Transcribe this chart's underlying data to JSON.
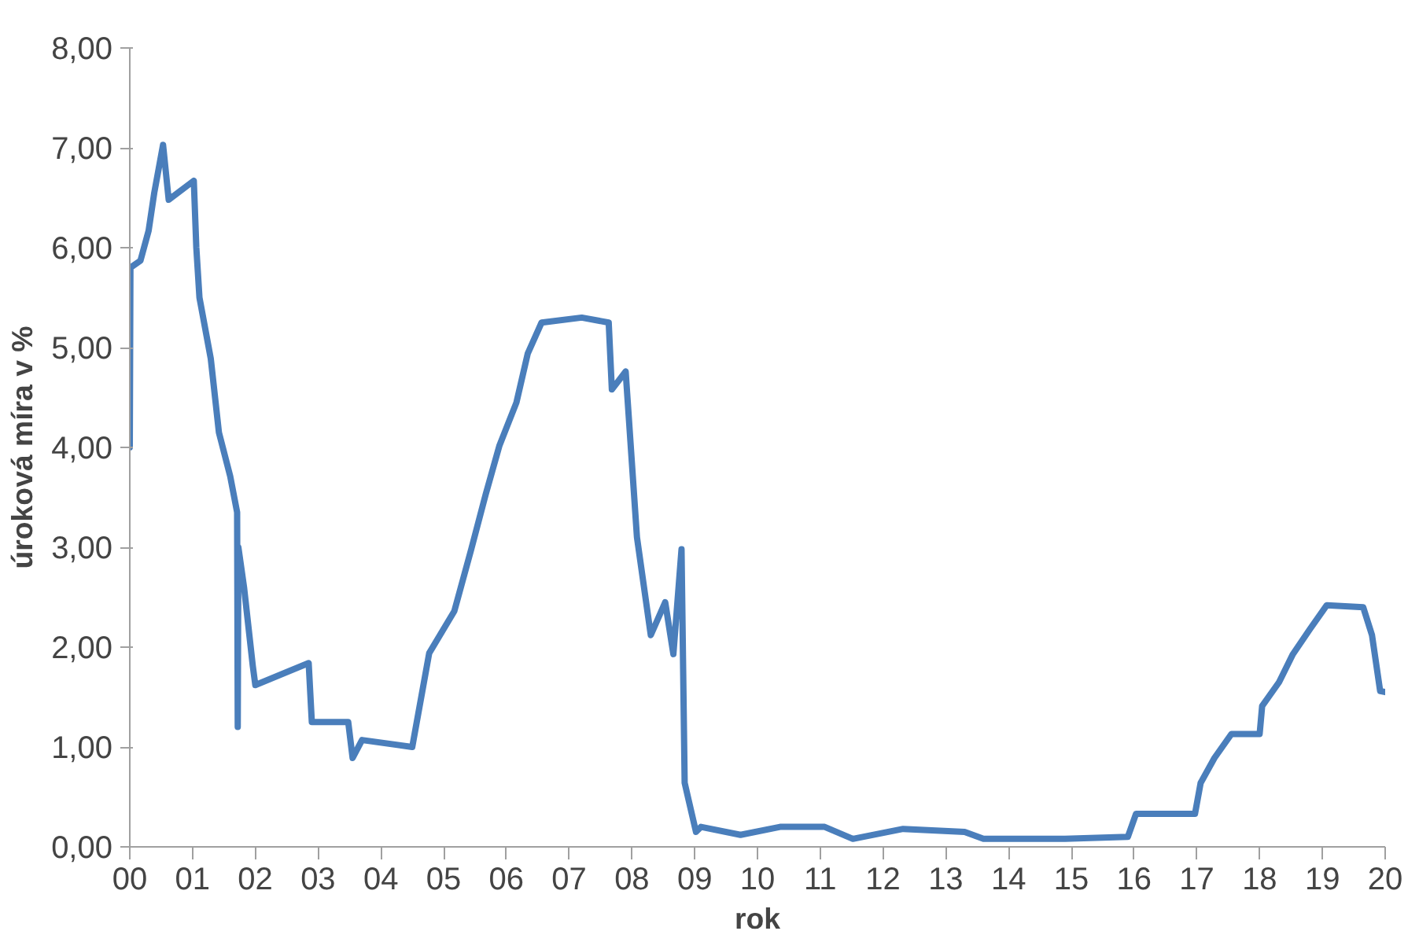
{
  "chart_data": {
    "type": "line",
    "xlabel": "rok",
    "ylabel": "úroková míra v %",
    "xlim": [
      0,
      20
    ],
    "ylim": [
      0,
      8
    ],
    "xticks": [
      {
        "value": 0,
        "label": "00"
      },
      {
        "value": 1,
        "label": "01"
      },
      {
        "value": 2,
        "label": "02"
      },
      {
        "value": 3,
        "label": "03"
      },
      {
        "value": 4,
        "label": "04"
      },
      {
        "value": 5,
        "label": "05"
      },
      {
        "value": 6,
        "label": "06"
      },
      {
        "value": 7,
        "label": "07"
      },
      {
        "value": 8,
        "label": "08"
      },
      {
        "value": 9,
        "label": "09"
      },
      {
        "value": 10,
        "label": "10"
      },
      {
        "value": 11,
        "label": "11"
      },
      {
        "value": 12,
        "label": "12"
      },
      {
        "value": 13,
        "label": "13"
      },
      {
        "value": 14,
        "label": "14"
      },
      {
        "value": 15,
        "label": "15"
      },
      {
        "value": 16,
        "label": "16"
      },
      {
        "value": 17,
        "label": "17"
      },
      {
        "value": 18,
        "label": "18"
      },
      {
        "value": 19,
        "label": "19"
      },
      {
        "value": 20,
        "label": "20"
      }
    ],
    "yticks": [
      {
        "value": 0,
        "label": "0,00"
      },
      {
        "value": 1,
        "label": "1,00"
      },
      {
        "value": 2,
        "label": "2,00"
      },
      {
        "value": 3,
        "label": "3,00"
      },
      {
        "value": 4,
        "label": "4,00"
      },
      {
        "value": 5,
        "label": "5,00"
      },
      {
        "value": 6,
        "label": "6,00"
      },
      {
        "value": 7,
        "label": "7,00"
      },
      {
        "value": 8,
        "label": "8,00"
      }
    ],
    "grid": false,
    "marker": "none",
    "line_style": "solid",
    "series": [
      {
        "color": "#4a7ebb",
        "x": [
          0,
          0.01,
          0.17,
          0.3,
          0.39,
          0.53,
          0.62,
          1.02,
          1.06,
          1.11,
          1.29,
          1.42,
          1.6,
          1.71,
          1.72,
          1.73,
          1.82,
          1.96,
          2.0,
          2.5,
          2.85,
          2.9,
          3.48,
          3.55,
          3.7,
          4.5,
          4.77,
          5.17,
          5.44,
          5.67,
          5.89,
          6.16,
          6.34,
          6.56,
          7.2,
          7.63,
          7.68,
          7.9,
          8.08,
          8.3,
          8.53,
          8.66,
          8.79,
          8.84,
          9.02,
          9.1,
          9.73,
          10.36,
          11.07,
          11.52,
          12.32,
          13.3,
          13.6,
          14.9,
          15.9,
          16.03,
          16.97,
          17.06,
          17.28,
          17.55,
          18.0,
          18.04,
          18.31,
          18.53,
          18.8,
          19.07,
          19.65,
          19.79,
          19.92,
          20.0
        ],
        "values": [
          4.0,
          5.8,
          5.87,
          6.17,
          6.55,
          7.03,
          6.48,
          6.67,
          6.0,
          5.5,
          4.89,
          4.15,
          3.71,
          3.35,
          1.2,
          3.0,
          2.6,
          1.81,
          1.62,
          1.75,
          1.84,
          1.25,
          1.25,
          0.89,
          1.07,
          1.0,
          1.94,
          2.36,
          2.98,
          3.53,
          4.02,
          4.45,
          4.94,
          5.25,
          5.3,
          5.25,
          4.58,
          4.76,
          3.1,
          2.12,
          2.45,
          1.93,
          2.98,
          0.64,
          0.15,
          0.2,
          0.12,
          0.2,
          0.2,
          0.08,
          0.18,
          0.15,
          0.08,
          0.08,
          0.1,
          0.33,
          0.33,
          0.64,
          0.89,
          1.13,
          1.13,
          1.41,
          1.65,
          1.93,
          2.18,
          2.42,
          2.4,
          2.12,
          1.56,
          1.55
        ]
      }
    ]
  }
}
